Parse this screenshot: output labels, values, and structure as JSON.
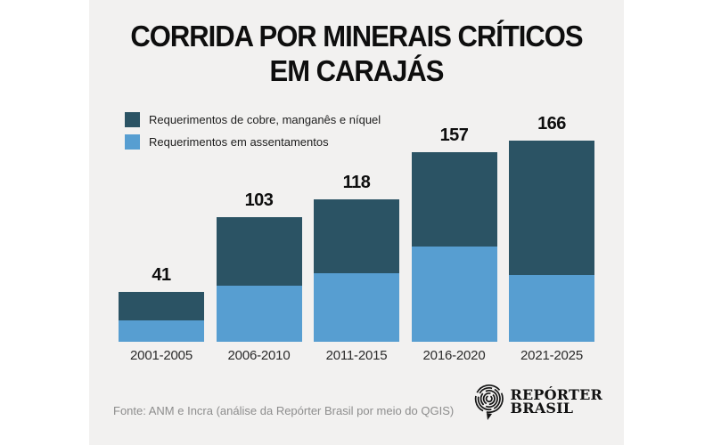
{
  "poster": {
    "title_line1": "CORRIDA POR MINERAIS CRÍTICOS",
    "title_line2": "EM CARAJÁS",
    "source": "Fonte: ANM e Incra (análise da Repórter Brasil por meio do QGIS)",
    "logo": {
      "line1": "REPÓRTER",
      "line2": "BRASIL"
    }
  },
  "legend": [
    {
      "label": "Requerimentos de cobre, manganês e níquel",
      "color": "#2b5364"
    },
    {
      "label": "Requerimentos em assentamentos",
      "color": "#579ed1"
    }
  ],
  "chart_data": {
    "type": "bar",
    "stacked": true,
    "title": "CORRIDA POR MINERAIS CRÍTICOS EM CARAJÁS",
    "categories": [
      "2001-2005",
      "2006-2010",
      "2011-2015",
      "2016-2020",
      "2021-2025"
    ],
    "series": [
      {
        "name": "Requerimentos em assentamentos",
        "color": "#579ed1",
        "values": [
          18,
          46,
          57,
          79,
          55
        ]
      },
      {
        "name": "Requerimentos de cobre, manganês e níquel",
        "color": "#2b5364",
        "values": [
          23,
          57,
          61,
          78,
          111
        ]
      }
    ],
    "totals": [
      41,
      103,
      118,
      157,
      166
    ],
    "ylim": [
      0,
      175
    ],
    "grid": false,
    "legend_position": "top-left",
    "value_labels": "totals-above-bars"
  },
  "colors": {
    "page_background": "#ffffff",
    "poster_background": "#f2f1f0",
    "title_text": "#0e0e0e",
    "axis_label_text": "#2b2b2b",
    "source_text": "#8d8d8d",
    "series_dark": "#2b5364",
    "series_light": "#579ed1"
  }
}
